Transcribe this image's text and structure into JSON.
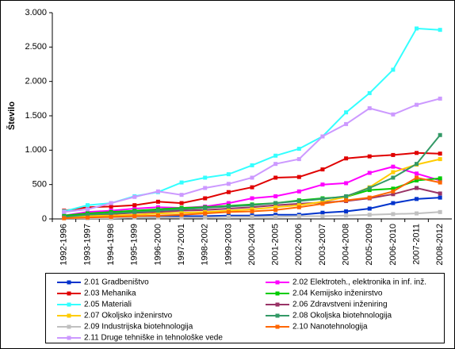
{
  "chart_data": {
    "type": "line",
    "y_label": "Število",
    "categories": [
      "1992-1996",
      "1993-1997",
      "1994-1998",
      "1995-1999",
      "1996-2000",
      "1997-2001",
      "1998-2002",
      "1999-2003",
      "2000-2004",
      "2001-2005",
      "2002-2006",
      "2003-2007",
      "2004-2008",
      "2005-2009",
      "2006-2010",
      "2007-2011",
      "2008-2012"
    ],
    "ylim": [
      0,
      3000
    ],
    "yticks": [
      0,
      {
        "value": 500,
        "label": "500"
      },
      {
        "value": 1000,
        "label": "1.000"
      },
      {
        "value": 1500,
        "label": "1.500"
      },
      {
        "value": 2000,
        "label": "2.000"
      },
      {
        "value": 2500,
        "label": "2.500"
      },
      {
        "value": 3000,
        "label": "3.000"
      }
    ],
    "grid": false,
    "series": [
      {
        "name": "2.01 Gradbeništvo",
        "color": "#0033cc",
        "values": [
          20,
          30,
          30,
          40,
          40,
          40,
          40,
          50,
          50,
          60,
          60,
          90,
          110,
          150,
          230,
          290,
          310
        ]
      },
      {
        "name": "2.02 Elektroteh., elektronika in inf. inž.",
        "color": "#ff00ff",
        "values": [
          50,
          100,
          120,
          150,
          170,
          160,
          180,
          230,
          300,
          330,
          400,
          500,
          520,
          670,
          760,
          660,
          560
        ]
      },
      {
        "name": "2.03 Mehanika",
        "color": "#e00000",
        "values": [
          120,
          170,
          180,
          200,
          250,
          230,
          300,
          390,
          460,
          600,
          610,
          720,
          880,
          910,
          930,
          960,
          950
        ]
      },
      {
        "name": "2.04 Kemijsko inženirstvo",
        "color": "#00cc00",
        "values": [
          50,
          80,
          100,
          120,
          140,
          160,
          170,
          190,
          210,
          230,
          270,
          300,
          320,
          420,
          440,
          560,
          590
        ]
      },
      {
        "name": "2.05 Materiali",
        "color": "#33ffff",
        "values": [
          110,
          200,
          230,
          330,
          390,
          530,
          600,
          650,
          780,
          920,
          1020,
          1200,
          1550,
          1830,
          2170,
          2770,
          2750
        ]
      },
      {
        "name": "2.06 Zdravstveni inženiring",
        "color": "#993366",
        "values": [
          20,
          50,
          70,
          90,
          100,
          120,
          130,
          150,
          170,
          200,
          220,
          240,
          260,
          300,
          360,
          450,
          370
        ]
      },
      {
        "name": "2.07 Okoljsko inženirstvo",
        "color": "#ffcc00",
        "values": [
          20,
          40,
          50,
          60,
          80,
          90,
          100,
          120,
          140,
          170,
          200,
          250,
          320,
          460,
          680,
          790,
          870
        ]
      },
      {
        "name": "2.08 Okoljska biotehnologija",
        "color": "#339966",
        "values": [
          30,
          60,
          80,
          100,
          120,
          140,
          160,
          180,
          200,
          230,
          260,
          290,
          330,
          450,
          600,
          800,
          1220
        ]
      },
      {
        "name": "2.09 Industrijska biotehnologija",
        "color": "#c0c0c0",
        "values": [
          10,
          10,
          10,
          20,
          20,
          20,
          20,
          30,
          30,
          30,
          40,
          40,
          50,
          60,
          70,
          80,
          100
        ]
      },
      {
        "name": "2.10 Nanotehnologija",
        "color": "#ff6600",
        "values": [
          10,
          20,
          30,
          40,
          50,
          60,
          80,
          100,
          110,
          130,
          170,
          220,
          270,
          310,
          400,
          600,
          530
        ]
      },
      {
        "name": "2.11 Druge tehniške in tehnološke vede",
        "color": "#cc99ff",
        "values": [
          100,
          140,
          230,
          320,
          400,
          350,
          450,
          510,
          600,
          800,
          870,
          1200,
          1380,
          1610,
          1520,
          1660,
          1750
        ]
      }
    ]
  }
}
